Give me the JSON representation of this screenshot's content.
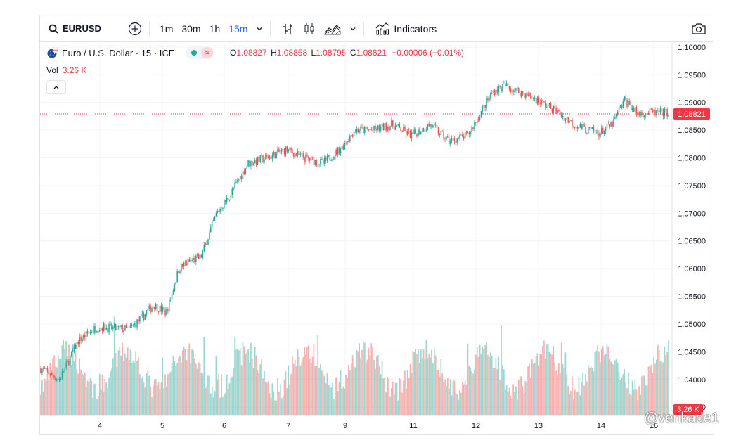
{
  "toolbar": {
    "symbol": "EURUSD",
    "intervals": [
      "1m",
      "30m",
      "1h",
      "15m"
    ],
    "active_interval": "15m",
    "indicators_label": "Indicators"
  },
  "legend": {
    "title": "Euro / U.S. Dollar · 15 · ICE",
    "open_label": "O",
    "open": "1.08827",
    "high_label": "H",
    "high": "1.08858",
    "low_label": "L",
    "low": "1.08795",
    "close_label": "C",
    "close": "1.08821",
    "change": "−0.00006 (−0.01%)",
    "vol_label": "Vol",
    "vol_value": "3.26 K"
  },
  "price_axis": {
    "ticks": [
      "1.10000",
      "1.09500",
      "1.09000",
      "1.08500",
      "1.08000",
      "1.07500",
      "1.07000",
      "1.06500",
      "1.06000",
      "1.05500",
      "1.05000",
      "1.04500",
      "1.04000",
      "1.03500"
    ],
    "last_price": "1.08821",
    "volume_badge": "3.26 K"
  },
  "time_axis": {
    "ticks": [
      "4",
      "5",
      "6",
      "7",
      "9",
      "11",
      "12",
      "13",
      "14",
      "16"
    ]
  },
  "watermark": "@venkade1",
  "colors": {
    "up": "#26a69a",
    "down": "#ef5350",
    "accent": "#2962ff",
    "last": "#f23645"
  },
  "chart_data": {
    "type": "candlestick",
    "x": [
      "3",
      "4",
      "5",
      "6",
      "7",
      "9",
      "11",
      "12",
      "13",
      "14",
      "16"
    ],
    "close": [
      1.0418,
      1.0488,
      1.061,
      1.0795,
      1.081,
      1.0858,
      1.085,
      1.089,
      1.088,
      1.084,
      1.0882
    ],
    "ylim": [
      1.0335,
      1.101
    ],
    "volume_peak": "≈ 3.3 K per 15m bar"
  }
}
